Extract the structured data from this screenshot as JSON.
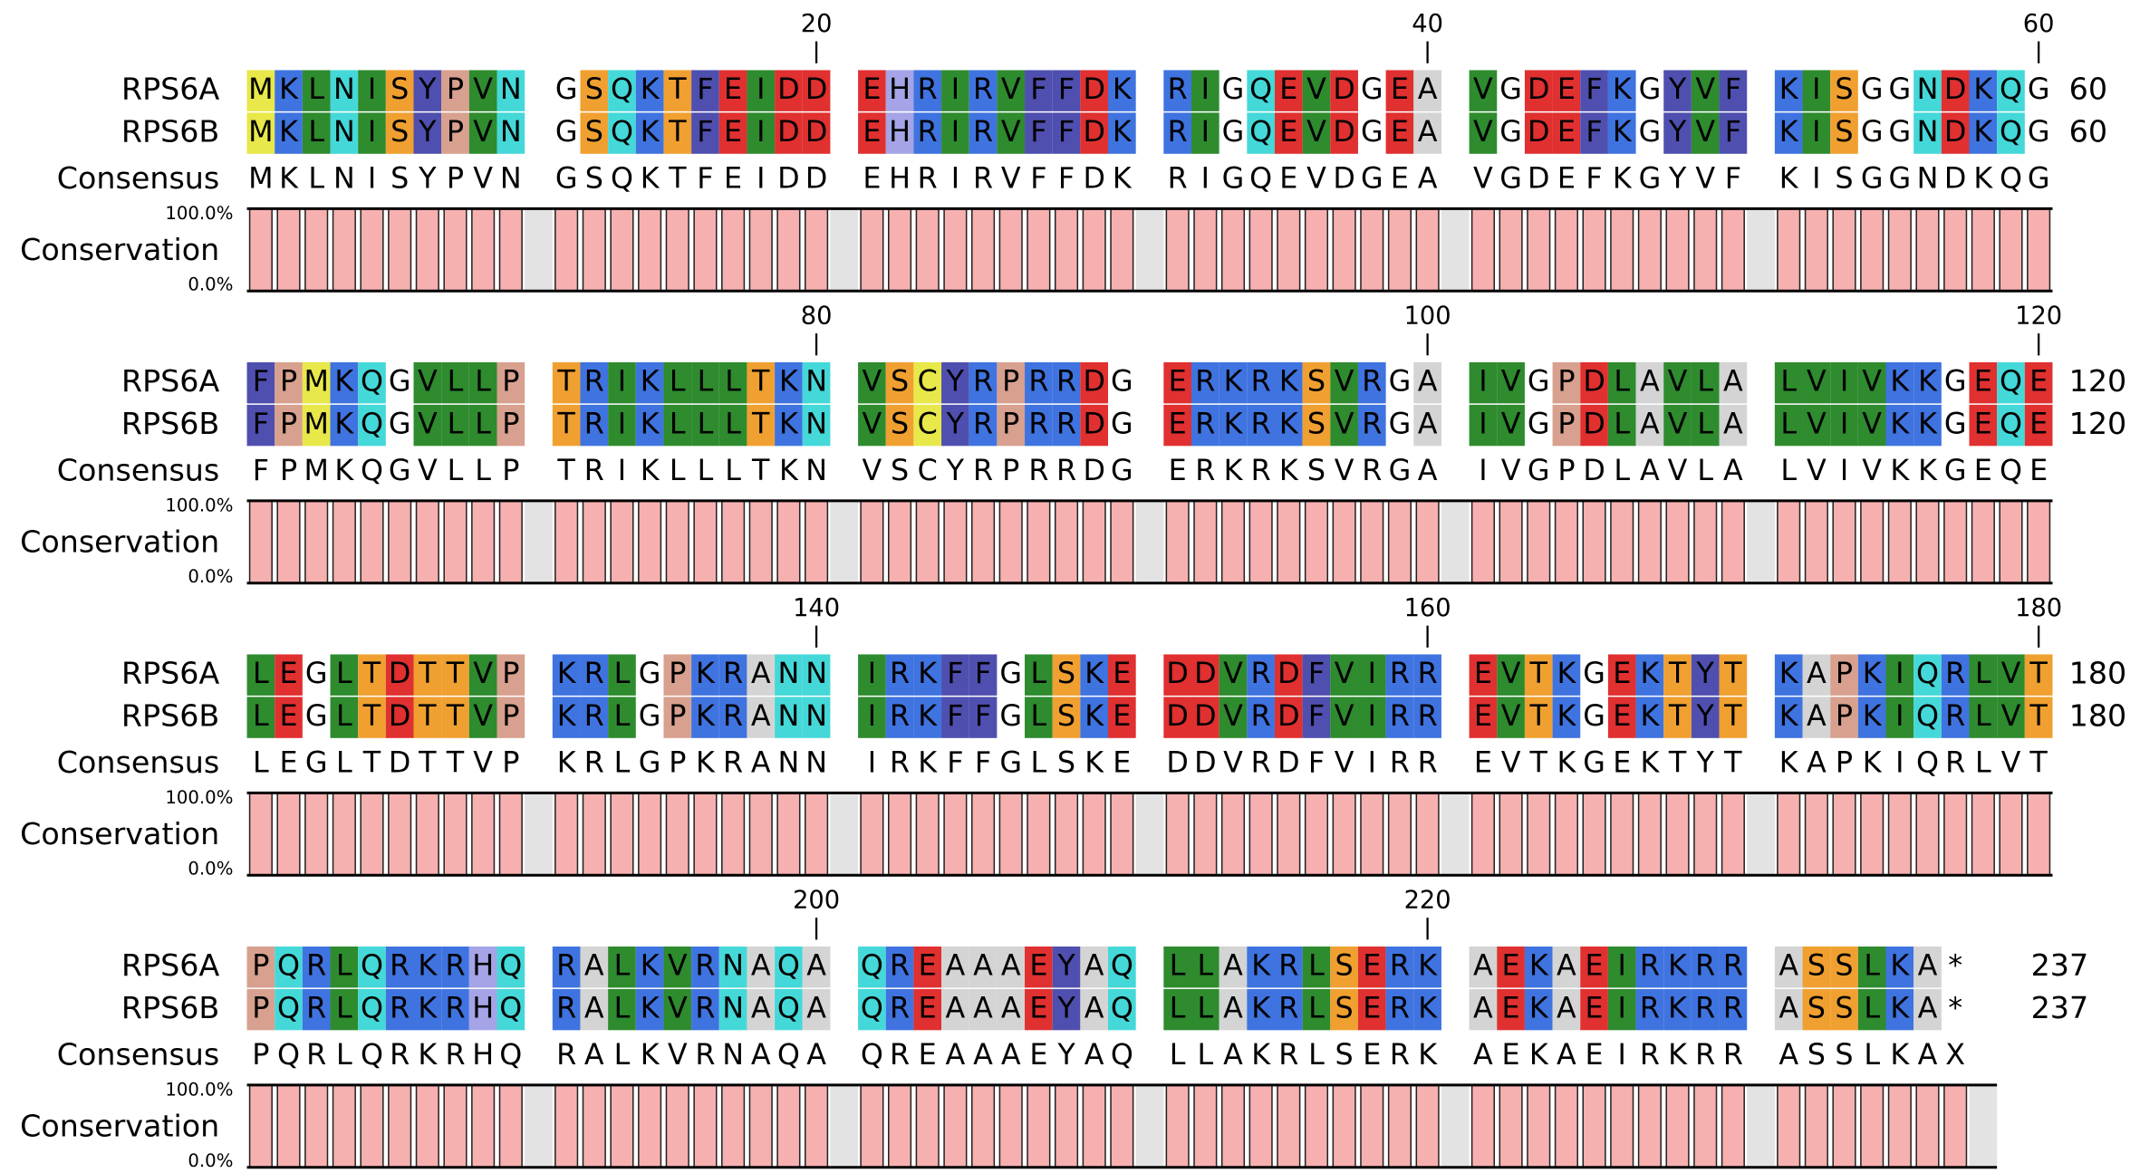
{
  "consensus_label": "Consensus",
  "conservation_label": "Conservation",
  "conservation_ticks": [
    {
      "value": 100,
      "label": "100.0%"
    },
    {
      "value": 0,
      "label": "0.0%"
    }
  ],
  "residue_colors": {
    "M": "#e8e84a",
    "C": "#e8e84a",
    "K": "#3f73e0",
    "R": "#3f73e0",
    "L": "#2e8b2e",
    "I": "#2e8b2e",
    "V": "#2e8b2e",
    "N": "#45d8d8",
    "Q": "#45d8d8",
    "S": "#f0a030",
    "T": "#f0a030",
    "Y": "#4f4fb0",
    "F": "#4f4fb0",
    "W": "#4f4fb0",
    "H": "#a4a4e6",
    "P": "#d8a08e",
    "E": "#e03030",
    "D": "#e03030",
    "A": "#d4d4d4"
  },
  "rows": [
    {
      "ruler": [
        20,
        40,
        60
      ],
      "sequences": [
        {
          "name": "RPS6A",
          "blocks": [
            "MKLNISYPVN",
            "GSQKTFEIDD",
            "EHRIRVFFDK",
            "RIGQEVDGEA",
            "VGDEFKGYVF",
            "KISGGNDKQG"
          ],
          "end": 60
        },
        {
          "name": "RPS6B",
          "blocks": [
            "MKLNISYPVN",
            "GSQKTFEIDD",
            "EHRIRVFFDK",
            "RIGQEVDGEA",
            "VGDEFKGYVF",
            "KISGGNDKQG"
          ],
          "end": 60
        }
      ],
      "consensus": [
        "MKLNISYPVN",
        "GSQKTFEIDD",
        "EHRIRVFFDK",
        "RIGQEVDGEA",
        "VGDEFKGYVF",
        "KISGGNDKQG"
      ],
      "conservation": [
        100,
        100,
        100,
        100,
        100,
        100,
        100,
        100,
        100,
        100,
        100,
        100,
        100,
        100,
        100,
        100,
        100,
        100,
        100,
        100,
        100,
        100,
        100,
        100,
        100,
        100,
        100,
        100,
        100,
        100,
        100,
        100,
        100,
        100,
        100,
        100,
        100,
        100,
        100,
        100,
        100,
        100,
        100,
        100,
        100,
        100,
        100,
        100,
        100,
        100,
        100,
        100,
        100,
        100,
        100,
        100,
        100,
        100,
        100,
        100
      ]
    },
    {
      "ruler": [
        80,
        100,
        120
      ],
      "sequences": [
        {
          "name": "RPS6A",
          "blocks": [
            "FPMKQGVLLP",
            "TRIKLLLTKN",
            "VSCYRPRRDG",
            "ERKRKSVRGA",
            "IVGPDLAVLA",
            "LVIVKKGEQE"
          ],
          "end": 120
        },
        {
          "name": "RPS6B",
          "blocks": [
            "FPMKQGVLLP",
            "TRIKLLLTKN",
            "VSCYRPRRDG",
            "ERKRKSVRGA",
            "IVGPDLAVLA",
            "LVIVKKGEQE"
          ],
          "end": 120
        }
      ],
      "consensus": [
        "FPMKQGVLLP",
        "TRIKLLLTKN",
        "VSCYRPRRDG",
        "ERKRKSVRGA",
        "IVGPDLAVLA",
        "LVIVKKGEQE"
      ],
      "conservation": [
        100,
        100,
        100,
        100,
        100,
        100,
        100,
        100,
        100,
        100,
        100,
        100,
        100,
        100,
        100,
        100,
        100,
        100,
        100,
        100,
        100,
        100,
        100,
        100,
        100,
        100,
        100,
        100,
        100,
        100,
        100,
        100,
        100,
        100,
        100,
        100,
        100,
        100,
        100,
        100,
        100,
        100,
        100,
        100,
        100,
        100,
        100,
        100,
        100,
        100,
        100,
        100,
        100,
        100,
        100,
        100,
        100,
        100,
        100,
        100
      ]
    },
    {
      "ruler": [
        140,
        160,
        180
      ],
      "sequences": [
        {
          "name": "RPS6A",
          "blocks": [
            "LEGLTDTTVP",
            "KRLGPKRANN",
            "IRKFFGLSKE",
            "DDVRDFVIRR",
            "EVTKGEKTYT",
            "KAPKIQRLVT"
          ],
          "end": 180
        },
        {
          "name": "RPS6B",
          "blocks": [
            "LEGLTDTTVP",
            "KRLGPKRANN",
            "IRKFFGLSKE",
            "DDVRDFVIRR",
            "EVTKGEKTYT",
            "KAPKIQRLVT"
          ],
          "end": 180
        }
      ],
      "consensus": [
        "LEGLTDTTVP",
        "KRLGPKRANN",
        "IRKFFGLSKE",
        "DDVRDFVIRR",
        "EVTKGEKTYT",
        "KAPKIQRLVT"
      ],
      "conservation": [
        100,
        100,
        100,
        100,
        100,
        100,
        100,
        100,
        100,
        100,
        100,
        100,
        100,
        100,
        100,
        100,
        100,
        100,
        100,
        100,
        100,
        100,
        100,
        100,
        100,
        100,
        100,
        100,
        100,
        100,
        100,
        100,
        100,
        100,
        100,
        100,
        100,
        100,
        100,
        100,
        100,
        100,
        100,
        100,
        100,
        100,
        100,
        100,
        100,
        100,
        100,
        100,
        100,
        100,
        100,
        100,
        100,
        100,
        100,
        100
      ]
    },
    {
      "ruler": [
        200,
        220
      ],
      "sequences": [
        {
          "name": "RPS6A",
          "blocks": [
            "PQRLQRKRHQ",
            "RALKVRNAQA",
            "QREAAAEYAQ",
            "LLAKRLSERK",
            "AEKAEIRKRR",
            "ASSLKA*"
          ],
          "end": 237
        },
        {
          "name": "RPS6B",
          "blocks": [
            "PQRLQRKRHQ",
            "RALKVRNAQA",
            "QREAAAEYAQ",
            "LLAKRLSERK",
            "AEKAEIRKRR",
            "ASSLKA*"
          ],
          "end": 237
        }
      ],
      "consensus": [
        "PQRLQRKRHQ",
        "RALKVRNAQA",
        "QREAAAEYAQ",
        "LLAKRLSERK",
        "AEKAEIRKRR",
        "ASSLKAX"
      ],
      "conservation": [
        100,
        100,
        100,
        100,
        100,
        100,
        100,
        100,
        100,
        100,
        100,
        100,
        100,
        100,
        100,
        100,
        100,
        100,
        100,
        100,
        100,
        100,
        100,
        100,
        100,
        100,
        100,
        100,
        100,
        100,
        100,
        100,
        100,
        100,
        100,
        100,
        100,
        100,
        100,
        100,
        100,
        100,
        100,
        100,
        100,
        100,
        100,
        100,
        100,
        100,
        100,
        100,
        100,
        100,
        100,
        100,
        100
      ]
    }
  ]
}
